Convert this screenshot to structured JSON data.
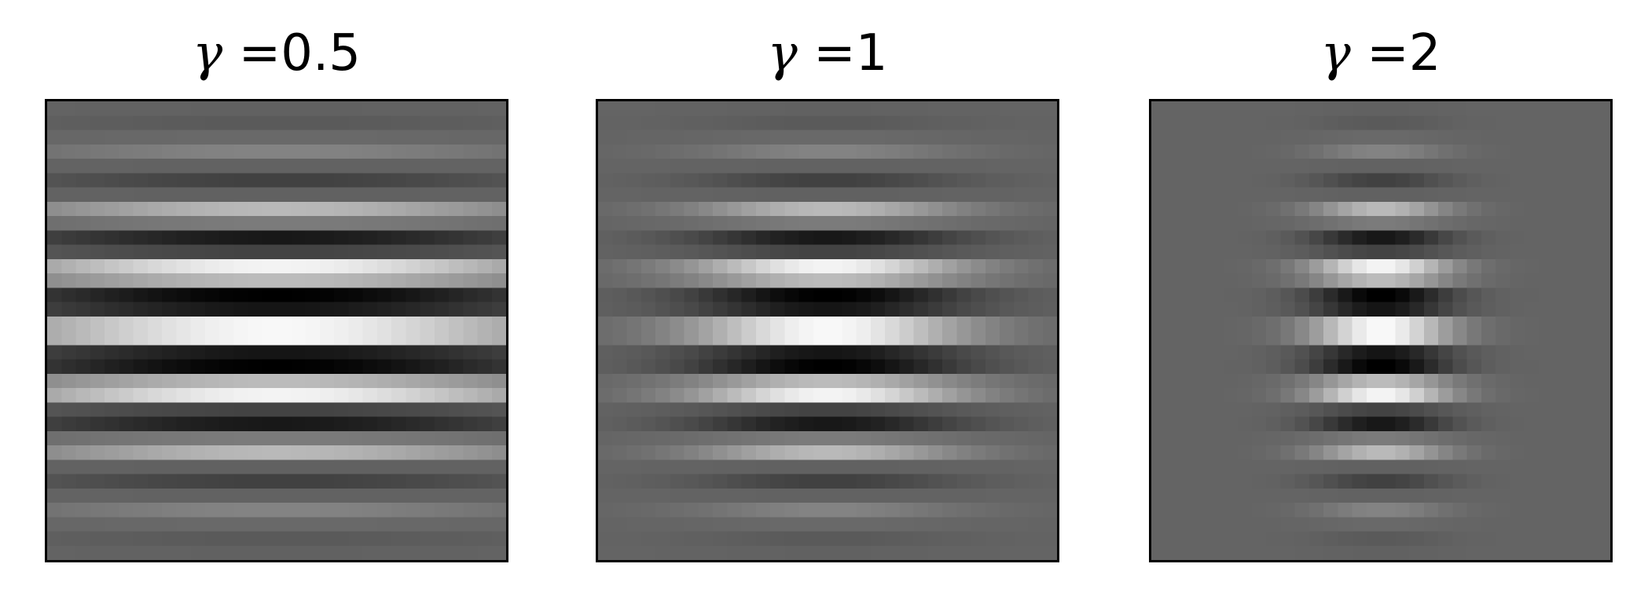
{
  "chart_data": [
    {
      "type": "heatmap",
      "symbol": "γ",
      "title_equals": " =",
      "value_label": "0.5",
      "gamma": 0.5,
      "colormap": "gray",
      "grid": false,
      "xticks": [],
      "yticks": []
    },
    {
      "type": "heatmap",
      "symbol": "γ",
      "title_equals": " =",
      "value_label": "1",
      "gamma": 1,
      "colormap": "gray",
      "grid": false,
      "xticks": [],
      "yticks": []
    },
    {
      "type": "heatmap",
      "symbol": "γ",
      "title_equals": " =",
      "value_label": "2",
      "gamma": 2,
      "colormap": "gray",
      "grid": false,
      "xticks": [],
      "yticks": []
    }
  ]
}
